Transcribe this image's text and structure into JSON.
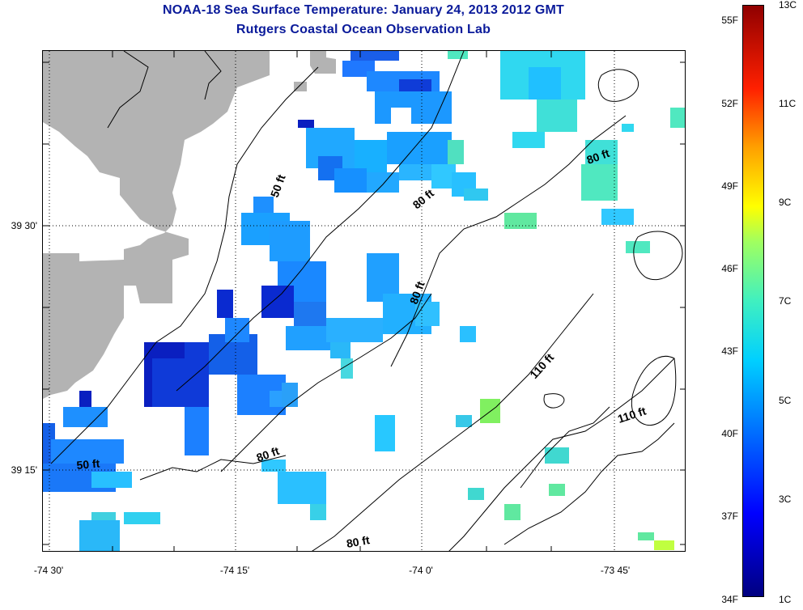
{
  "header": {
    "title": "NOAA-18 Sea Surface Temperature:  January 24, 2013 2012 GMT",
    "subtitle": "Rutgers Coastal Ocean Observation Lab"
  },
  "map": {
    "latitude_labels": [
      "39 30'",
      "39 15'"
    ],
    "longitude_labels": [
      "-74 30'",
      "-74 15'",
      "-74 0'",
      "-73 45'"
    ],
    "contour_labels": [
      "50 ft",
      "80 ft",
      "80 ft",
      "80 ft",
      "80 ft",
      "110 ft",
      "110 ft",
      "50 ft",
      "80 ft"
    ],
    "colors": {
      "land": "#b3b3b3",
      "gridline": "#000000",
      "contour": "#000000"
    }
  },
  "colorbar": {
    "fahrenheit_labels": [
      "55F",
      "52F",
      "49F",
      "46F",
      "43F",
      "40F",
      "37F",
      "34F"
    ],
    "celsius_labels": [
      "13C",
      "11C",
      "9C",
      "7C",
      "5C",
      "3C",
      "1C"
    ]
  }
}
